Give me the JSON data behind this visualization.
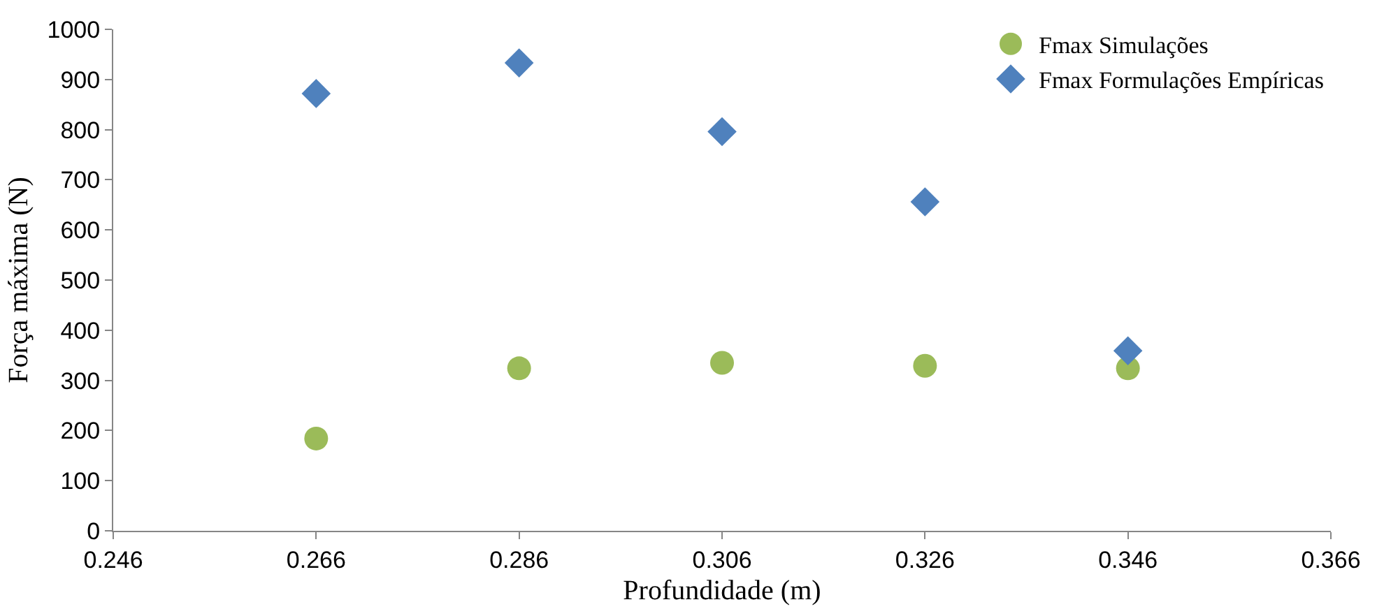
{
  "chart_data": {
    "type": "scatter",
    "xlabel": "Profundidade (m)",
    "ylabel": "Força máxima (N)",
    "xlim": [
      0.246,
      0.366
    ],
    "xticks": [
      {
        "value": 0.246,
        "label": "0.246"
      },
      {
        "value": 0.266,
        "label": "0.266"
      },
      {
        "value": 0.286,
        "label": "0.286"
      },
      {
        "value": 0.306,
        "label": "0.306"
      },
      {
        "value": 0.326,
        "label": "0.326"
      },
      {
        "value": 0.346,
        "label": "0.346"
      },
      {
        "value": 0.366,
        "label": "0.366"
      }
    ],
    "ylim": [
      0,
      1000
    ],
    "yticks": [
      0,
      100,
      200,
      300,
      400,
      500,
      600,
      700,
      800,
      900,
      1000
    ],
    "legend": "top right",
    "series": [
      {
        "name": "Fmax Simulações",
        "color": "#9bbb59",
        "marker": "circle",
        "x": [
          0.266,
          0.286,
          0.306,
          0.326,
          0.346
        ],
        "values": [
          184,
          324,
          335,
          329,
          324
        ]
      },
      {
        "name": "Fmax Formulações Empíricas",
        "color": "#4f81bd",
        "marker": "diamond",
        "x": [
          0.266,
          0.286,
          0.306,
          0.326,
          0.346
        ],
        "values": [
          872,
          933,
          796,
          656,
          359
        ]
      }
    ]
  }
}
